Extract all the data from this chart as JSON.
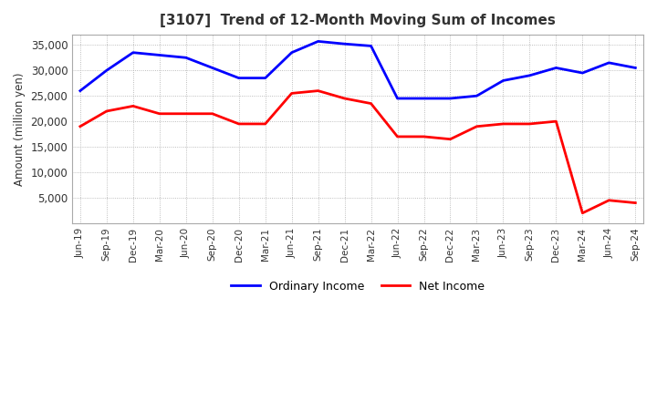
{
  "title": "[3107]  Trend of 12-Month Moving Sum of Incomes",
  "ylabel": "Amount (million yen)",
  "ylim": [
    0,
    37000
  ],
  "yticks": [
    5000,
    10000,
    15000,
    20000,
    25000,
    30000,
    35000
  ],
  "background_color": "#ffffff",
  "grid_color": "#aaaaaa",
  "line_colors": {
    "ordinary": "#0000ff",
    "net": "#ff0000"
  },
  "x_labels": [
    "Jun-19",
    "Sep-19",
    "Dec-19",
    "Mar-20",
    "Jun-20",
    "Sep-20",
    "Dec-20",
    "Mar-21",
    "Jun-21",
    "Sep-21",
    "Dec-21",
    "Mar-22",
    "Jun-22",
    "Sep-22",
    "Dec-22",
    "Mar-23",
    "Jun-23",
    "Sep-23",
    "Dec-23",
    "Mar-24",
    "Jun-24",
    "Sep-24"
  ],
  "ordinary_income": [
    26000,
    30000,
    33500,
    33000,
    32500,
    30500,
    28500,
    28500,
    33500,
    35700,
    35200,
    34800,
    24500,
    24500,
    24500,
    25000,
    28000,
    29000,
    30500,
    29500,
    31500,
    30500
  ],
  "net_income": [
    19000,
    22000,
    23000,
    21500,
    21500,
    21500,
    19500,
    19500,
    25500,
    26000,
    24500,
    23500,
    17000,
    17000,
    16500,
    19000,
    19500,
    19500,
    20000,
    2000,
    4500,
    4000
  ]
}
